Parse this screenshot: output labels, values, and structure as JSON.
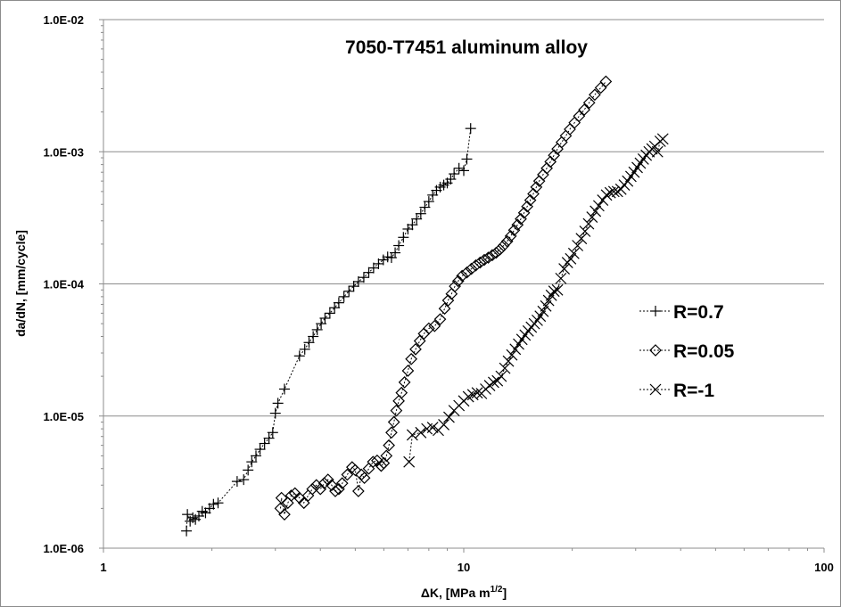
{
  "chart_data": {
    "type": "scatter",
    "title": "7050-T7451 aluminum alloy",
    "xlabel": "ΔK, [MPa m",
    "xlabel_sup": "1/2",
    "xlabel_end": "]",
    "ylabel": "da/dN, [mm/cycle]",
    "xscale": "log",
    "yscale": "log",
    "xlim": [
      1,
      100
    ],
    "ylim": [
      1e-06,
      0.01
    ],
    "x_ticks": [
      {
        "value": 1,
        "label": "1"
      },
      {
        "value": 10,
        "label": "10"
      },
      {
        "value": 100,
        "label": "100"
      }
    ],
    "y_ticks": [
      {
        "value": 1e-06,
        "label": "1.0E-06"
      },
      {
        "value": 1e-05,
        "label": "1.0E-05"
      },
      {
        "value": 0.0001,
        "label": "1.0E-04"
      },
      {
        "value": 0.001,
        "label": "1.0E-03"
      },
      {
        "value": 0.01,
        "label": "1.0E-02"
      }
    ],
    "grid": "horizontal major",
    "legend_position": "right",
    "series": [
      {
        "name": "R=0.7",
        "marker": "plus",
        "points": [
          [
            1.7,
            1.35e-06
          ],
          [
            1.71,
            1.8e-06
          ],
          [
            1.74,
            1.6e-06
          ],
          [
            1.77,
            1.7e-06
          ],
          [
            1.8,
            1.65e-06
          ],
          [
            1.84,
            1.75e-06
          ],
          [
            1.88,
            1.9e-06
          ],
          [
            1.92,
            1.85e-06
          ],
          [
            1.97,
            2e-06
          ],
          [
            2.02,
            2.15e-06
          ],
          [
            2.08,
            2.2e-06
          ],
          [
            2.35,
            3.2e-06
          ],
          [
            2.45,
            3.3e-06
          ],
          [
            2.52,
            3.9e-06
          ],
          [
            2.58,
            4.5e-06
          ],
          [
            2.65,
            5e-06
          ],
          [
            2.72,
            5.6e-06
          ],
          [
            2.8,
            6.2e-06
          ],
          [
            2.88,
            6.8e-06
          ],
          [
            2.95,
            7.5e-06
          ],
          [
            3.0,
            1.05e-05
          ],
          [
            3.05,
            1.25e-05
          ],
          [
            3.18,
            1.6e-05
          ],
          [
            3.5,
            2.85e-05
          ],
          [
            3.62,
            3.2e-05
          ],
          [
            3.72,
            3.6e-05
          ],
          [
            3.82,
            4e-05
          ],
          [
            3.92,
            4.5e-05
          ],
          [
            4.02,
            5e-05
          ],
          [
            4.12,
            5.5e-05
          ],
          [
            4.25,
            6e-05
          ],
          [
            4.38,
            6.6e-05
          ],
          [
            4.5,
            7.2e-05
          ],
          [
            4.65,
            8e-05
          ],
          [
            4.8,
            8.8e-05
          ],
          [
            4.95,
            9.6e-05
          ],
          [
            5.1,
            0.000104
          ],
          [
            5.28,
            0.000112
          ],
          [
            5.45,
            0.000122
          ],
          [
            5.62,
            0.000132
          ],
          [
            5.8,
            0.000142
          ],
          [
            5.98,
            0.000152
          ],
          [
            6.15,
            0.00016
          ],
          [
            6.3,
            0.000158
          ],
          [
            6.45,
            0.000172
          ],
          [
            6.6,
            0.000195
          ],
          [
            6.8,
            0.000225
          ],
          [
            7.0,
            0.00026
          ],
          [
            7.2,
            0.00028
          ],
          [
            7.4,
            0.00031
          ],
          [
            7.6,
            0.00034
          ],
          [
            7.8,
            0.00038
          ],
          [
            8.0,
            0.00042
          ],
          [
            8.2,
            0.00047
          ],
          [
            8.4,
            0.00051
          ],
          [
            8.6,
            0.00054
          ],
          [
            8.8,
            0.00056
          ],
          [
            9.0,
            0.00058
          ],
          [
            9.2,
            0.00062
          ],
          [
            9.4,
            0.00068
          ],
          [
            9.7,
            0.00075
          ],
          [
            10.0,
            0.00072
          ],
          [
            10.2,
            0.00088
          ],
          [
            10.45,
            0.0015
          ]
        ]
      },
      {
        "name": "R=0.05",
        "marker": "diamond",
        "points": [
          [
            3.1,
            2e-06
          ],
          [
            3.12,
            2.4e-06
          ],
          [
            3.18,
            1.8e-06
          ],
          [
            3.25,
            2.2e-06
          ],
          [
            3.32,
            2.5e-06
          ],
          [
            3.4,
            2.6e-06
          ],
          [
            3.5,
            2.4e-06
          ],
          [
            3.6,
            2.2e-06
          ],
          [
            3.7,
            2.5e-06
          ],
          [
            3.8,
            2.8e-06
          ],
          [
            3.9,
            3e-06
          ],
          [
            4.0,
            2.8e-06
          ],
          [
            4.1,
            3.1e-06
          ],
          [
            4.2,
            3.3e-06
          ],
          [
            4.3,
            3e-06
          ],
          [
            4.4,
            2.7e-06
          ],
          [
            4.5,
            2.8e-06
          ],
          [
            4.6,
            3.1e-06
          ],
          [
            4.75,
            3.6e-06
          ],
          [
            4.9,
            4.1e-06
          ],
          [
            5.0,
            3.9e-06
          ],
          [
            5.1,
            2.7e-06
          ],
          [
            5.2,
            3.6e-06
          ],
          [
            5.3,
            3.4e-06
          ],
          [
            5.45,
            4e-06
          ],
          [
            5.6,
            4.5e-06
          ],
          [
            5.75,
            4.6e-06
          ],
          [
            5.9,
            4.2e-06
          ],
          [
            6.0,
            4.4e-06
          ],
          [
            6.1,
            5e-06
          ],
          [
            6.2,
            6e-06
          ],
          [
            6.3,
            7.5e-06
          ],
          [
            6.4,
            9e-06
          ],
          [
            6.5,
            1.1e-05
          ],
          [
            6.6,
            1.3e-05
          ],
          [
            6.72,
            1.5e-05
          ],
          [
            6.85,
            1.8e-05
          ],
          [
            7.0,
            2.2e-05
          ],
          [
            7.15,
            2.7e-05
          ],
          [
            7.35,
            3.2e-05
          ],
          [
            7.55,
            3.7e-05
          ],
          [
            7.75,
            4.2e-05
          ],
          [
            8.0,
            4.6e-05
          ],
          [
            8.3,
            4.8e-05
          ],
          [
            8.6,
            5.4e-05
          ],
          [
            8.85,
            6.5e-05
          ],
          [
            9.05,
            7.5e-05
          ],
          [
            9.25,
            8.4e-05
          ],
          [
            9.45,
            9.6e-05
          ],
          [
            9.65,
            0.000105
          ],
          [
            9.9,
            0.000115
          ],
          [
            10.2,
            0.000122
          ],
          [
            10.5,
            0.00013
          ],
          [
            10.8,
            0.000138
          ],
          [
            11.1,
            0.000145
          ],
          [
            11.4,
            0.000152
          ],
          [
            11.7,
            0.000158
          ],
          [
            12.0,
            0.000165
          ],
          [
            12.3,
            0.000172
          ],
          [
            12.6,
            0.000182
          ],
          [
            12.9,
            0.000195
          ],
          [
            13.2,
            0.00021
          ],
          [
            13.5,
            0.00023
          ],
          [
            13.8,
            0.000255
          ],
          [
            14.1,
            0.00028
          ],
          [
            14.4,
            0.00031
          ],
          [
            14.7,
            0.000345
          ],
          [
            15.0,
            0.000385
          ],
          [
            15.3,
            0.00043
          ],
          [
            15.6,
            0.00048
          ],
          [
            15.9,
            0.00054
          ],
          [
            16.2,
            0.0006
          ],
          [
            16.6,
            0.00067
          ],
          [
            17.0,
            0.00075
          ],
          [
            17.4,
            0.00084
          ],
          [
            17.8,
            0.00094
          ],
          [
            18.2,
            0.00105
          ],
          [
            18.7,
            0.00118
          ],
          [
            19.2,
            0.00132
          ],
          [
            19.7,
            0.00148
          ],
          [
            20.3,
            0.00166
          ],
          [
            20.9,
            0.00186
          ],
          [
            21.6,
            0.00208
          ],
          [
            22.3,
            0.00235
          ],
          [
            23.1,
            0.0027
          ],
          [
            24.0,
            0.00305
          ],
          [
            24.8,
            0.0034
          ]
        ]
      },
      {
        "name": "R=-1",
        "marker": "x",
        "points": [
          [
            7.05,
            4.5e-06
          ],
          [
            7.2,
            7.2e-06
          ],
          [
            7.6,
            7.5e-06
          ],
          [
            7.9,
            8e-06
          ],
          [
            8.2,
            8.2e-06
          ],
          [
            8.5,
            7.8e-06
          ],
          [
            8.8,
            8.6e-06
          ],
          [
            9.1,
            9.8e-06
          ],
          [
            9.4,
            1.1e-05
          ],
          [
            9.7,
            1.2e-05
          ],
          [
            10.0,
            1.3e-05
          ],
          [
            10.3,
            1.4e-05
          ],
          [
            10.6,
            1.45e-05
          ],
          [
            10.9,
            1.5e-05
          ],
          [
            11.2,
            1.48e-05
          ],
          [
            11.5,
            1.6e-05
          ],
          [
            11.8,
            1.7e-05
          ],
          [
            12.1,
            1.8e-05
          ],
          [
            12.4,
            1.85e-05
          ],
          [
            12.7,
            2e-05
          ],
          [
            13.0,
            2.3e-05
          ],
          [
            13.3,
            2.6e-05
          ],
          [
            13.6,
            2.9e-05
          ],
          [
            13.9,
            3.2e-05
          ],
          [
            14.2,
            3.5e-05
          ],
          [
            14.5,
            3.8e-05
          ],
          [
            14.8,
            4.1e-05
          ],
          [
            15.1,
            4.4e-05
          ],
          [
            15.4,
            4.7e-05
          ],
          [
            15.7,
            5e-05
          ],
          [
            16.0,
            5.3e-05
          ],
          [
            16.3,
            5.7e-05
          ],
          [
            16.6,
            6.2e-05
          ],
          [
            16.9,
            6.8e-05
          ],
          [
            17.2,
            7.5e-05
          ],
          [
            17.5,
            8.2e-05
          ],
          [
            17.8,
            8.8e-05
          ],
          [
            18.2,
            9e-05
          ],
          [
            18.6,
            0.00011
          ],
          [
            19.0,
            0.00013
          ],
          [
            19.4,
            0.000145
          ],
          [
            19.8,
            0.000155
          ],
          [
            20.2,
            0.00017
          ],
          [
            20.7,
            0.000195
          ],
          [
            21.2,
            0.00022
          ],
          [
            21.7,
            0.00025
          ],
          [
            22.2,
            0.000285
          ],
          [
            22.7,
            0.00032
          ],
          [
            23.2,
            0.000355
          ],
          [
            23.7,
            0.00039
          ],
          [
            24.3,
            0.00043
          ],
          [
            24.9,
            0.00047
          ],
          [
            25.5,
            0.00049
          ],
          [
            26.1,
            0.0005
          ],
          [
            26.7,
            0.0005
          ],
          [
            27.3,
            0.00052
          ],
          [
            27.9,
            0.00056
          ],
          [
            28.5,
            0.0006
          ],
          [
            29.1,
            0.00065
          ],
          [
            29.7,
            0.0007
          ],
          [
            30.3,
            0.00076
          ],
          [
            30.9,
            0.00082
          ],
          [
            31.5,
            0.00088
          ],
          [
            32.1,
            0.00094
          ],
          [
            32.7,
            0.001
          ],
          [
            33.3,
            0.00105
          ],
          [
            33.9,
            0.0011
          ],
          [
            34.5,
            0.001
          ],
          [
            35.1,
            0.0012
          ],
          [
            35.7,
            0.00125
          ]
        ]
      }
    ]
  }
}
